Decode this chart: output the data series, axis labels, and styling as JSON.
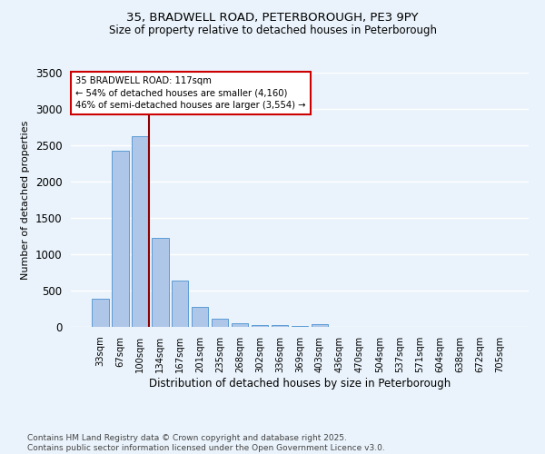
{
  "title1": "35, BRADWELL ROAD, PETERBOROUGH, PE3 9PY",
  "title2": "Size of property relative to detached houses in Peterborough",
  "xlabel": "Distribution of detached houses by size in Peterborough",
  "ylabel": "Number of detached properties",
  "categories": [
    "33sqm",
    "67sqm",
    "100sqm",
    "134sqm",
    "167sqm",
    "201sqm",
    "235sqm",
    "268sqm",
    "302sqm",
    "336sqm",
    "369sqm",
    "403sqm",
    "436sqm",
    "470sqm",
    "504sqm",
    "537sqm",
    "571sqm",
    "604sqm",
    "638sqm",
    "672sqm",
    "705sqm"
  ],
  "values": [
    390,
    2420,
    2620,
    1230,
    640,
    270,
    115,
    55,
    30,
    20,
    10,
    40,
    0,
    0,
    0,
    0,
    0,
    0,
    0,
    0,
    0
  ],
  "bar_color": "#aec6e8",
  "bar_edge_color": "#5b9bd5",
  "vline_color": "#8b0000",
  "annotation_text": "35 BRADWELL ROAD: 117sqm\n← 54% of detached houses are smaller (4,160)\n46% of semi-detached houses are larger (3,554) →",
  "annotation_box_color": "#ffffff",
  "annotation_box_edge": "#cc0000",
  "ylim": [
    0,
    3500
  ],
  "yticks": [
    0,
    500,
    1000,
    1500,
    2000,
    2500,
    3000,
    3500
  ],
  "bg_color": "#eaf3fb",
  "grid_color": "#ffffff",
  "footer_line1": "Contains HM Land Registry data © Crown copyright and database right 2025.",
  "footer_line2": "Contains public sector information licensed under the Open Government Licence v3.0."
}
